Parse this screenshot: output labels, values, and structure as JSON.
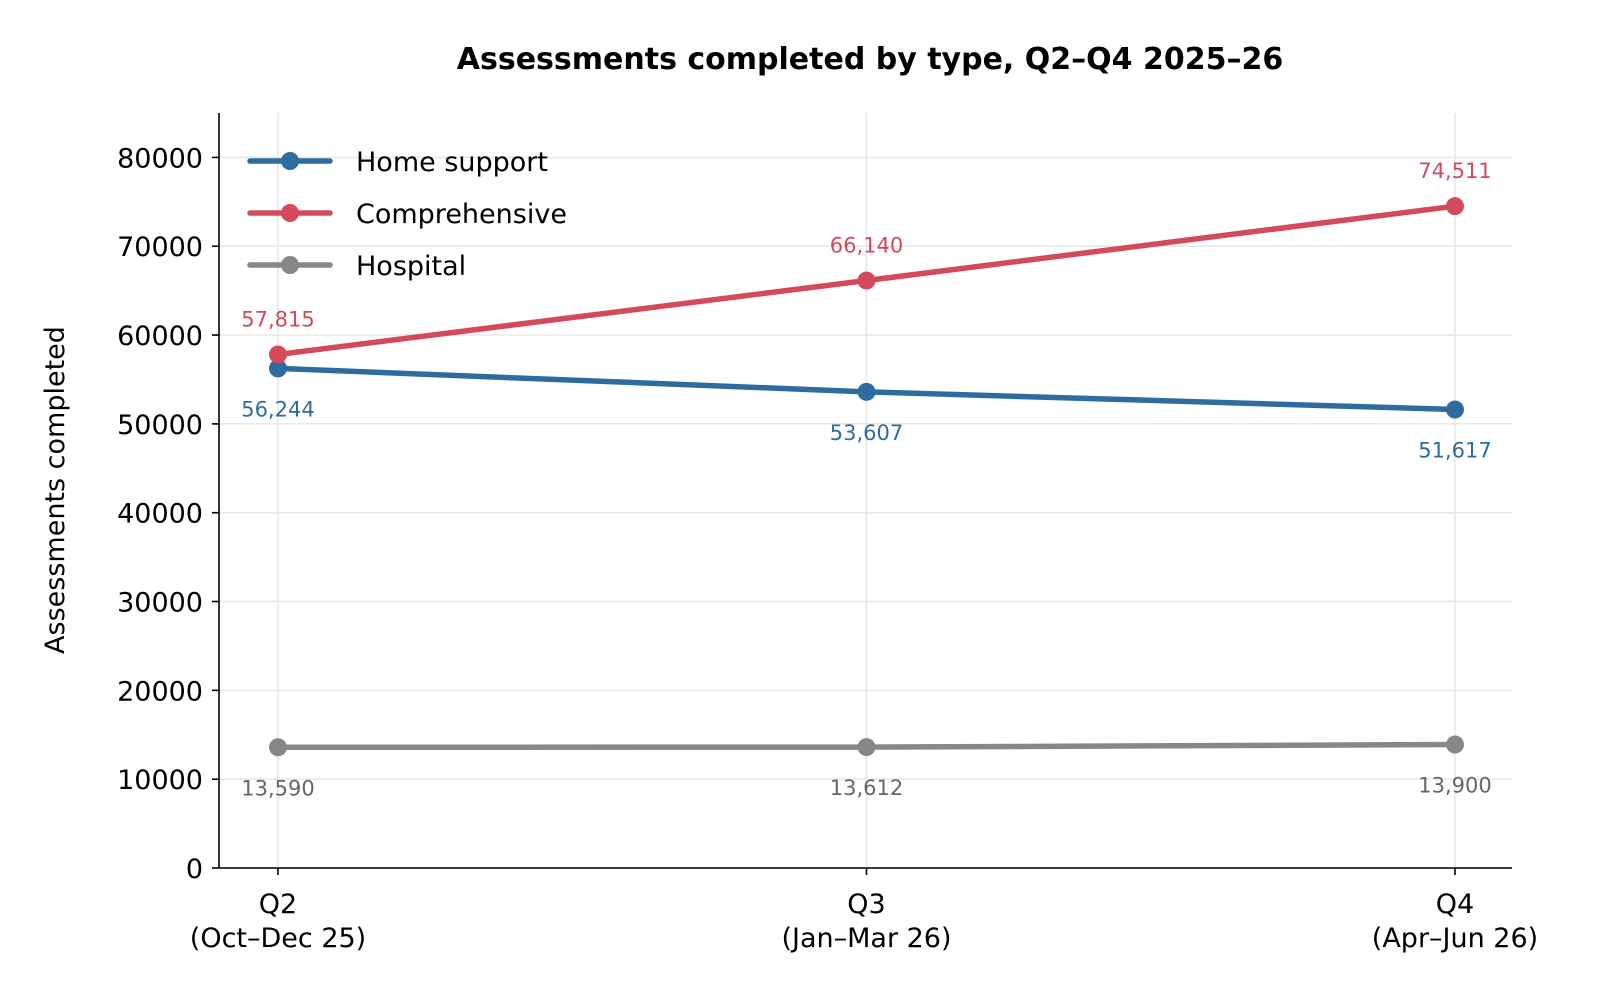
{
  "chart_data": {
    "type": "line",
    "title": "Assessments completed by type, Q2–Q4 2025–26",
    "xlabel": "",
    "ylabel": "Assessments completed",
    "categories": [
      [
        "Q2",
        "(Oct–Dec 25)"
      ],
      [
        "Q3",
        "(Jan–Mar 26)"
      ],
      [
        "Q4",
        "(Apr–Jun 26)"
      ]
    ],
    "ylim": [
      0,
      85000
    ],
    "yticks": [
      0,
      10000,
      20000,
      30000,
      40000,
      50000,
      60000,
      70000,
      80000
    ],
    "grid": true,
    "legend_position": "top-left",
    "series": [
      {
        "name": "Home support",
        "color": "#2e6b9e",
        "values": [
          56244,
          53607,
          51617
        ],
        "labels": [
          "56,244",
          "53,607",
          "51,617"
        ],
        "label_position": "below"
      },
      {
        "name": "Comprehensive",
        "color": "#d44a5c",
        "values": [
          57815,
          66140,
          74511
        ],
        "labels": [
          "57,815",
          "66,140",
          "74,511"
        ],
        "label_position": "above"
      },
      {
        "name": "Hospital",
        "color": "#878787",
        "label_color": "#666666",
        "values": [
          13590,
          13612,
          13900
        ],
        "labels": [
          "13,590",
          "13,612",
          "13,900"
        ],
        "label_position": "below"
      }
    ]
  }
}
